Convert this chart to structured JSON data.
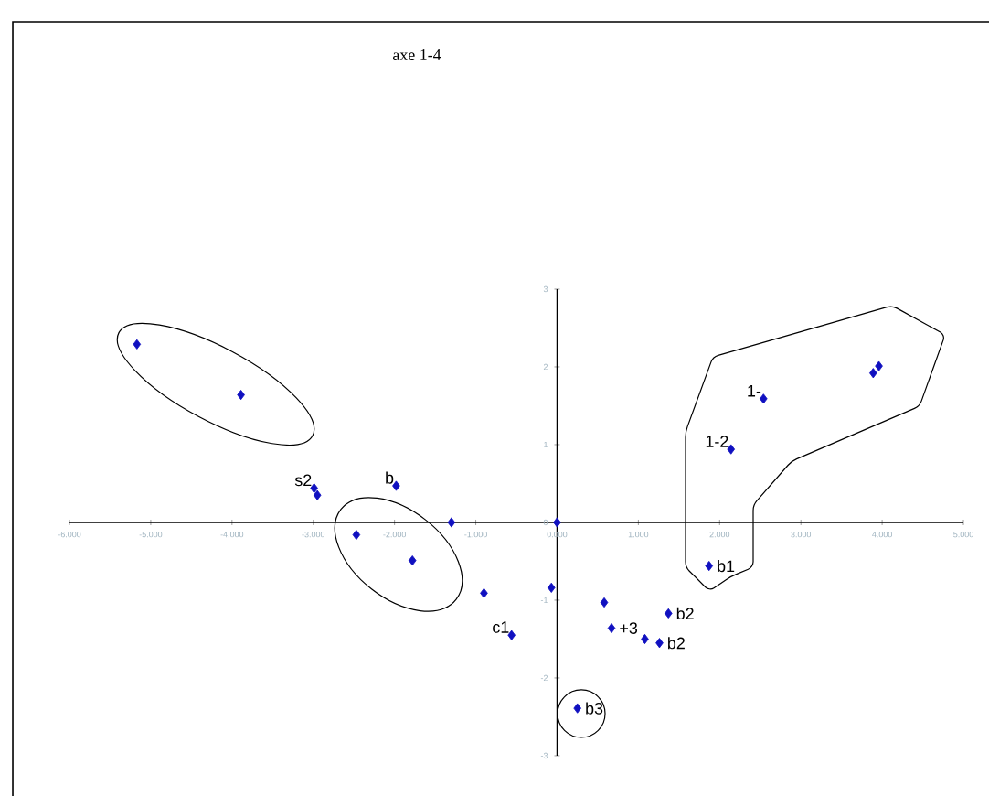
{
  "chart_data": {
    "type": "scatter",
    "title": "axe 1-4",
    "x": [
      -5.17,
      -3.89,
      -2.99,
      -2.95,
      -1.98,
      -2.47,
      -1.78,
      -1.3,
      0,
      -0.9,
      -0.56,
      -0.07,
      0.58,
      0.67,
      1.37,
      1.08,
      1.26,
      0.25,
      1.87,
      2.14,
      2.54,
      3.89,
      3.96
    ],
    "values": [
      2.29,
      1.64,
      0.44,
      0.35,
      0.47,
      -0.16,
      -0.49,
      0.0,
      0.0,
      -0.91,
      -1.45,
      -0.84,
      -1.03,
      -1.36,
      -1.17,
      -1.5,
      -1.55,
      -2.39,
      -0.56,
      0.94,
      1.59,
      1.92,
      2.01
    ],
    "color": "#1010c0",
    "marker": "diamond",
    "xlim": [
      -6,
      5
    ],
    "ylim": [
      -3,
      3
    ],
    "xticks": [
      {
        "value": -6,
        "label": "-6.000"
      },
      {
        "value": -5,
        "label": "-5.000"
      },
      {
        "value": -4,
        "label": "-4.000"
      },
      {
        "value": -3,
        "label": "-3.000"
      },
      {
        "value": -2,
        "label": "-2.000"
      },
      {
        "value": -1,
        "label": "-1.000"
      },
      {
        "value": 0,
        "label": "0.000"
      },
      {
        "value": 1,
        "label": "1.000"
      },
      {
        "value": 2,
        "label": "2.000"
      },
      {
        "value": 3,
        "label": "3.000"
      },
      {
        "value": 4,
        "label": "4.000"
      },
      {
        "value": 5,
        "label": "5.000"
      }
    ],
    "yticks": [
      -3,
      -2,
      -1,
      0,
      1,
      2,
      3
    ],
    "grid": false,
    "annotations": [
      {
        "text": "s2",
        "x": -2.99,
        "y": 0.44
      },
      {
        "text": "b",
        "x": -1.98,
        "y": 0.47
      },
      {
        "text": "1-",
        "x": 2.54,
        "y": 1.59
      },
      {
        "text": "1-2",
        "x": 2.14,
        "y": 0.94
      },
      {
        "text": "c1",
        "x": -0.56,
        "y": -1.45
      },
      {
        "text": "+3",
        "x": 0.67,
        "y": -1.36
      },
      {
        "text": "b2",
        "x": 1.37,
        "y": -1.17
      },
      {
        "text": "b2",
        "x": 1.26,
        "y": -1.55
      },
      {
        "text": "b3",
        "x": 0.25,
        "y": -2.39
      },
      {
        "text": "b1",
        "x": 1.87,
        "y": -0.56
      }
    ]
  }
}
